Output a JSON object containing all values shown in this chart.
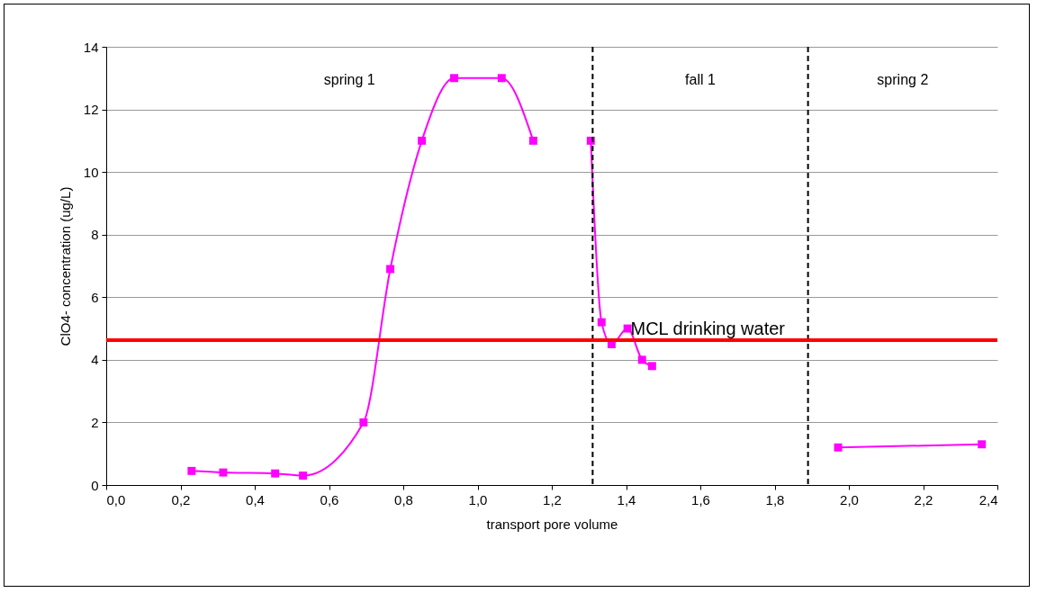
{
  "chart_data": {
    "type": "line",
    "xlabel": "transport pore volume",
    "ylabel": "ClO4- concentration (ug/L)",
    "series": [
      {
        "color": "#ff00ff",
        "x": [
          0.23,
          0.315,
          0.455,
          0.53,
          0.693,
          0.765,
          0.85,
          0.937,
          1.065,
          1.15
        ],
        "values": [
          0.45,
          0.4,
          0.37,
          0.3,
          2.0,
          6.9,
          11,
          13,
          13,
          11
        ]
      },
      {
        "color": "#ff00ff",
        "x": [
          1.305,
          1.334,
          1.361,
          1.404,
          1.443,
          1.47
        ],
        "values": [
          11,
          5.2,
          4.5,
          5.0,
          4.0,
          3.8
        ]
      },
      {
        "color": "#ff00ff",
        "x": [
          1.971,
          2.358
        ],
        "values": [
          1.2,
          1.3
        ]
      }
    ],
    "xlim": [
      0,
      2.4
    ],
    "xticks": [
      {
        "value": 0,
        "label": "0,0"
      },
      {
        "value": 0.2,
        "label": "0,2"
      },
      {
        "value": 0.4,
        "label": "0,4"
      },
      {
        "value": 0.6,
        "label": "0,6"
      },
      {
        "value": 0.8,
        "label": "0,8"
      },
      {
        "value": 1.0,
        "label": "1,0"
      },
      {
        "value": 1.2,
        "label": "1,2"
      },
      {
        "value": 1.4,
        "label": "1,4"
      },
      {
        "value": 1.6,
        "label": "1,6"
      },
      {
        "value": 1.8,
        "label": "1,8"
      },
      {
        "value": 2.0,
        "label": "2,0"
      },
      {
        "value": 2.2,
        "label": "2,2"
      },
      {
        "value": 2.4,
        "label": "2,4"
      }
    ],
    "ylim": [
      0,
      14
    ],
    "yticks": [
      0,
      2,
      4,
      6,
      8,
      10,
      12,
      14
    ],
    "grid": "y",
    "marker": "square",
    "legend": false,
    "ref_lines": [
      {
        "axis": "x",
        "value": 1.31,
        "color": "#000000",
        "line_style": "dashed"
      },
      {
        "axis": "x",
        "value": 1.89,
        "color": "#000000",
        "line_style": "dashed"
      },
      {
        "axis": "y",
        "value": 4.63,
        "label": "MCL drinking water",
        "color": "#ff0000",
        "line_style": "solid"
      }
    ],
    "annotations": [
      "spring 1",
      "fall 1",
      "spring 2"
    ]
  }
}
